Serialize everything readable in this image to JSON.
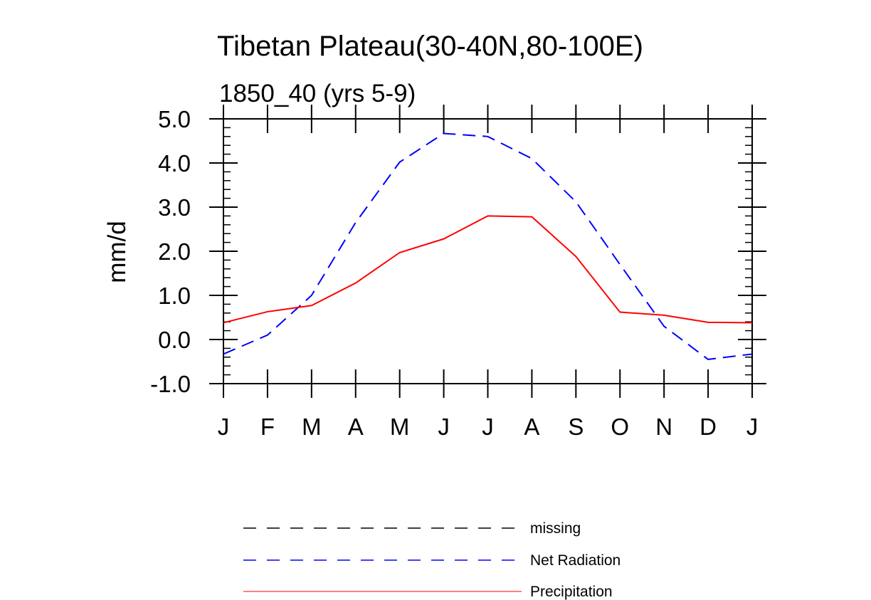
{
  "chart_data": {
    "type": "line",
    "title": "Tibetan Plateau(30-40N,80-100E)",
    "subtitle": "1850_40 (yrs 5-9)",
    "xlabel": "",
    "ylabel": "mm/d",
    "categories": [
      "J",
      "F",
      "M",
      "A",
      "M",
      "J",
      "J",
      "A",
      "S",
      "O",
      "N",
      "D",
      "J"
    ],
    "ylim": [
      -1.0,
      5.0
    ],
    "yticks": [
      "-1.0",
      "0.0",
      "1.0",
      "2.0",
      "3.0",
      "4.0",
      "5.0"
    ],
    "ytick_values": [
      -1,
      0,
      1,
      2,
      3,
      4,
      5
    ],
    "grid": false,
    "legend_position": "bottom",
    "series": [
      {
        "name": "Net Radiation",
        "color": "#0000ff",
        "style": "dashed",
        "values": [
          -0.33,
          0.1,
          1.0,
          2.65,
          4.02,
          4.67,
          4.6,
          4.1,
          3.12,
          1.7,
          0.3,
          -0.45,
          -0.33
        ]
      },
      {
        "name": "Precipitation",
        "color": "#ff0000",
        "style": "solid",
        "values": [
          0.38,
          0.63,
          0.77,
          1.28,
          1.97,
          2.28,
          2.8,
          2.78,
          1.88,
          0.62,
          0.55,
          0.39,
          0.38
        ]
      }
    ],
    "legend": [
      {
        "label": "missing",
        "color": "#000000",
        "style": "dashed"
      },
      {
        "label": "Net Radiation",
        "color": "#0000ff",
        "style": "dashed"
      },
      {
        "label": "Precipitation",
        "color": "#ff0000",
        "style": "solid"
      }
    ]
  }
}
